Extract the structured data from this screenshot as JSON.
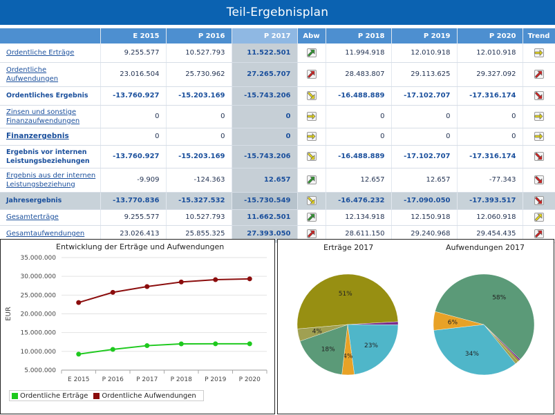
{
  "title": "Teil-Ergebnisplan",
  "columns": [
    "",
    "E 2015",
    "P 2016",
    "P 2017",
    "Abw",
    "P 2018",
    "P 2019",
    "P 2020",
    "Trend"
  ],
  "rows": [
    {
      "label": "Ordentliche Erträge",
      "style": "link",
      "values": [
        "9.255.577",
        "10.527.793",
        "11.522.501",
        "11.994.918",
        "12.010.918",
        "12.010.918"
      ],
      "abw": "up-green",
      "trend": "right-yellow"
    },
    {
      "label": "Ordentliche Aufwendungen",
      "style": "link",
      "values": [
        "23.016.504",
        "25.730.962",
        "27.265.707",
        "28.483.807",
        "29.113.625",
        "29.327.092"
      ],
      "abw": "up-red",
      "trend": "up-red"
    },
    {
      "label": "Ordentliches Ergebnis",
      "style": "bold",
      "values": [
        "-13.760.927",
        "-15.203.169",
        "-15.743.206",
        "-16.488.889",
        "-17.102.707",
        "-17.316.174"
      ],
      "abw": "down-yellow",
      "trend": "down-red"
    },
    {
      "label": "Zinsen und sonstige Finanzaufwendungen",
      "style": "link",
      "values": [
        "0",
        "0",
        "0",
        "0",
        "0",
        "0"
      ],
      "abw": "right-yellow",
      "trend": "right-yellow"
    },
    {
      "label": "Finanzergebnis",
      "style": "link-bold",
      "values": [
        "0",
        "0",
        "0",
        "0",
        "0",
        "0"
      ],
      "abw": "right-yellow",
      "trend": "right-yellow"
    },
    {
      "label": "Ergebnis vor internen Leistungsbeziehungen",
      "style": "bold",
      "values": [
        "-13.760.927",
        "-15.203.169",
        "-15.743.206",
        "-16.488.889",
        "-17.102.707",
        "-17.316.174"
      ],
      "abw": "down-yellow",
      "trend": "down-red"
    },
    {
      "label": "Ergebnis aus der internen Leistungsbeziehung",
      "style": "link",
      "values": [
        "-9.909",
        "-124.363",
        "12.657",
        "12.657",
        "12.657",
        "-77.343"
      ],
      "abw": "up-green",
      "trend": "down-red"
    },
    {
      "label": "Jahresergebnis",
      "style": "total",
      "values": [
        "-13.770.836",
        "-15.327.532",
        "-15.730.549",
        "-16.476.232",
        "-17.090.050",
        "-17.393.517"
      ],
      "abw": "down-yellow",
      "trend": "down-red"
    },
    {
      "label": "Gesamterträge",
      "style": "link",
      "values": [
        "9.255.577",
        "10.527.793",
        "11.662.501",
        "12.134.918",
        "12.150.918",
        "12.060.918"
      ],
      "abw": "up-green",
      "trend": "up-yellow"
    },
    {
      "label": "Gesamtaufwendungen",
      "style": "link",
      "values": [
        "23.026.413",
        "25.855.325",
        "27.393.050",
        "28.611.150",
        "29.240.968",
        "29.454.435"
      ],
      "abw": "up-red",
      "trend": "up-red"
    }
  ],
  "icons": {
    "up-green": "arrow-up-right-green-icon",
    "up-red": "arrow-up-right-red-icon",
    "down-yellow": "arrow-down-right-yellow-icon",
    "down-red": "arrow-down-right-red-icon",
    "right-yellow": "arrow-right-yellow-icon",
    "up-yellow": "arrow-up-right-yellow-icon"
  },
  "colors": {
    "header_blue": "#0b62b1",
    "table_header": "#4d8fd0",
    "income_green": "#1ec91e",
    "expense_red": "#8b0d0d",
    "olive": "#978f12",
    "sage": "#5b9a78",
    "orange": "#e8a227",
    "cyan": "#4fb6c9",
    "purple": "#7b2d8b",
    "khaki": "#a0a052"
  },
  "chart_data": [
    {
      "type": "line",
      "title": "Entwicklung der Erträge und Aufwendungen",
      "ylabel": "EUR",
      "xlabel": "",
      "categories": [
        "E 2015",
        "P 2016",
        "P 2017",
        "P 2018",
        "P 2019",
        "P 2020"
      ],
      "ylim": [
        5000000,
        35000000
      ],
      "yticks": [
        "5.000.000",
        "10.000.000",
        "15.000.000",
        "20.000.000",
        "25.000.000",
        "30.000.000",
        "35.000.000"
      ],
      "grid": true,
      "legend": "bottom-left",
      "series": [
        {
          "name": "Ordentliche Erträge",
          "color": "#1ec91e",
          "values": [
            9255577,
            10527793,
            11522501,
            11994918,
            12010918,
            12010918
          ]
        },
        {
          "name": "Ordentliche Aufwendungen",
          "color": "#8b0d0d",
          "values": [
            23016504,
            25730962,
            27265707,
            28483807,
            29113625,
            29327092
          ]
        }
      ]
    },
    {
      "type": "pie",
      "title": "Erträge 2017",
      "slices": [
        {
          "value": 51,
          "label": "51%",
          "color": "#978f12"
        },
        {
          "value": 1,
          "label": "",
          "color": "#7b2d8b"
        },
        {
          "value": 23,
          "label": "23%",
          "color": "#4fb6c9"
        },
        {
          "value": 4,
          "label": "4%",
          "color": "#e8a227"
        },
        {
          "value": 18,
          "label": "18%",
          "color": "#5b9a78"
        },
        {
          "value": 4,
          "label": "4%",
          "color": "#a0a052"
        }
      ]
    },
    {
      "type": "pie",
      "title": "Aufwendungen 2017",
      "slices": [
        {
          "value": 58,
          "label": "58%",
          "color": "#5b9a78"
        },
        {
          "value": 0.5,
          "label": "",
          "color": "#7b2d8b"
        },
        {
          "value": 0.5,
          "label": "",
          "color": "#978f12"
        },
        {
          "value": 1,
          "label": "",
          "color": "#a0a052"
        },
        {
          "value": 34,
          "label": "34%",
          "color": "#4fb6c9"
        },
        {
          "value": 6,
          "label": "6%",
          "color": "#e8a227"
        }
      ]
    }
  ]
}
